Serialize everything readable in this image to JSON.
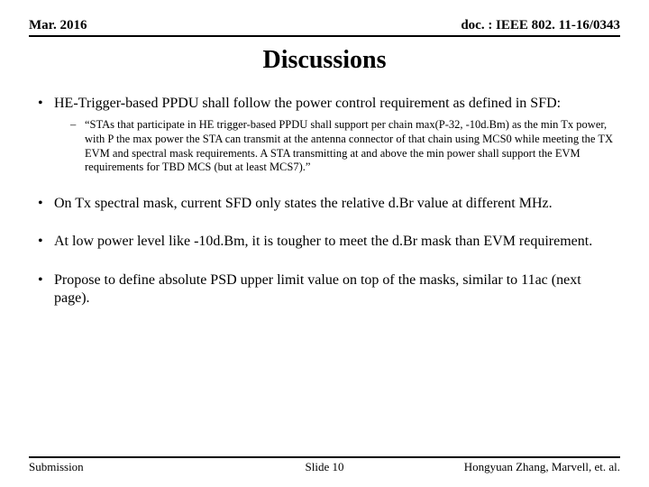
{
  "header": {
    "left": "Mar. 2016",
    "right": "doc. : IEEE 802. 11-16/0343"
  },
  "title": "Discussions",
  "bullets": [
    {
      "text": "HE-Trigger-based PPDU shall follow the power control requirement as defined in SFD:",
      "sub": [
        "“STAs that participate in HE trigger-based PPDU shall support per chain max(P-32, -10d.Bm) as the min Tx power, with P the max power the STA can transmit at the antenna connector of that chain using MCS0 while meeting the TX EVM and spectral mask requirements. A STA transmitting at and above the min power shall support the EVM requirements for TBD MCS (but at least MCS7).”"
      ]
    },
    {
      "text": "On Tx spectral mask, current SFD only states the relative d.Br value at different MHz.",
      "sub": []
    },
    {
      "text": "At low power level like -10d.Bm, it is tougher to meet the d.Br mask than EVM requirement.",
      "sub": []
    },
    {
      "text": "Propose to define absolute PSD upper limit value on top of the masks, similar to 11ac (next page).",
      "sub": []
    }
  ],
  "footer": {
    "left": "Submission",
    "center": "Slide 10",
    "right": "Hongyuan Zhang,  Marvell,  et. al."
  }
}
